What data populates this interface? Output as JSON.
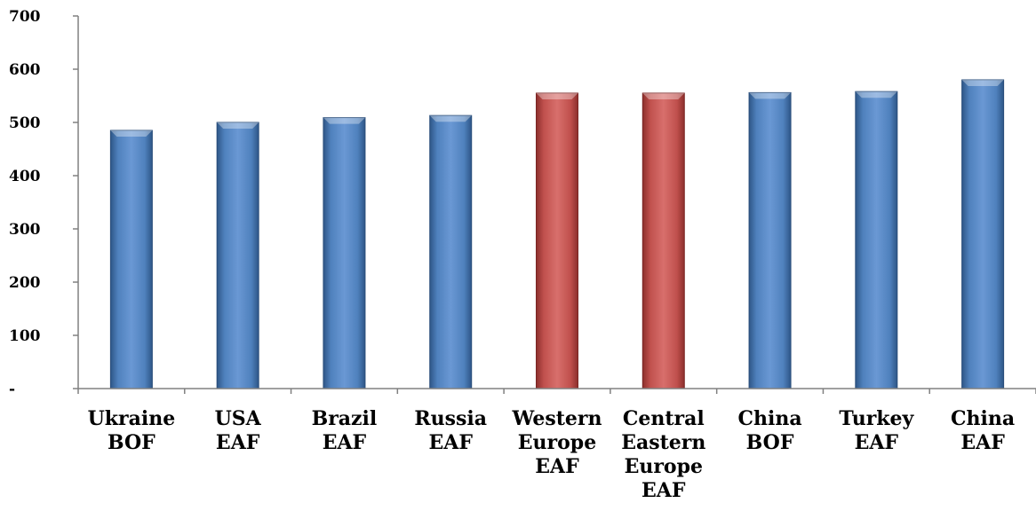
{
  "chart_data": {
    "type": "bar",
    "title": "",
    "xlabel": "",
    "ylabel": "",
    "categories": [
      [
        "Ukraine",
        "BOF"
      ],
      [
        "USA",
        "EAF"
      ],
      [
        "Brazil",
        "EAF"
      ],
      [
        "Russia",
        "EAF"
      ],
      [
        "Western",
        "Europe",
        "EAF"
      ],
      [
        "Central",
        "Eastern",
        "Europe",
        "EAF"
      ],
      [
        "China",
        "BOF"
      ],
      [
        "Turkey",
        "EAF"
      ],
      [
        "China",
        "EAF"
      ]
    ],
    "values": [
      485,
      500,
      509,
      513,
      555,
      555,
      556,
      558,
      580
    ],
    "highlight": [
      false,
      false,
      false,
      false,
      true,
      true,
      false,
      false,
      false
    ],
    "ylim": [
      0,
      700
    ],
    "yticks": [
      0,
      100,
      200,
      300,
      400,
      500,
      600,
      700
    ],
    "ytick_labels": [
      "-",
      "100",
      "200",
      "300",
      "400",
      "500",
      "600",
      "700"
    ],
    "grid": false,
    "legend": "none",
    "colors": {
      "bar": "#4F81BD",
      "highlight": "#C0504D",
      "axis": "#808080"
    }
  }
}
